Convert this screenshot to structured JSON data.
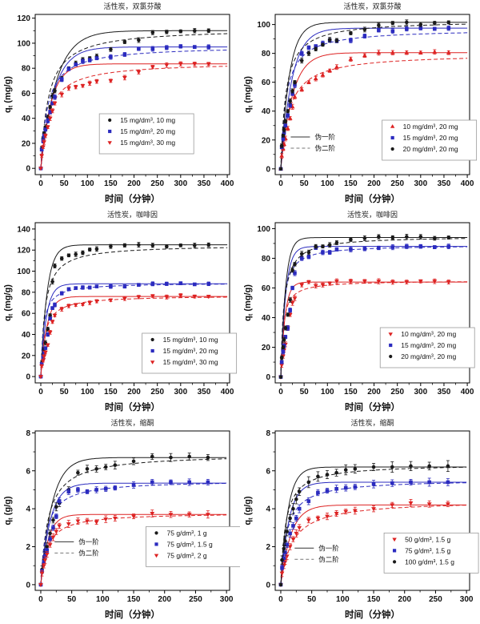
{
  "figure": {
    "xlabel": "时间（分钟）",
    "pfo_label": "伪一阶",
    "pso_label": "伪二阶",
    "colors": {
      "black": "#1a1a1a",
      "blue": "#2b2bbf",
      "red": "#dd2222"
    }
  },
  "chart_data": [
    {
      "id": "diclofenac-mass-series",
      "type": "scatter",
      "title": "活性炭，双氯芬酸",
      "xlabel": "时间（分钟）",
      "ylabel_base": "q",
      "ylabel_sub": "t",
      "ylabel_unit": " (mg/g)",
      "xlim": [
        -12,
        405
      ],
      "xticks": [
        0,
        50,
        100,
        150,
        200,
        250,
        300,
        350,
        400
      ],
      "ylim": [
        -5,
        123
      ],
      "yticks": [
        0,
        20,
        40,
        60,
        80,
        100,
        120
      ],
      "legend_position": {
        "fx": 0.33,
        "fy": 0.62
      },
      "line_legend_position": null,
      "t": [
        0,
        2,
        5,
        7,
        10,
        15,
        20,
        25,
        30,
        45,
        60,
        75,
        90,
        105,
        120,
        150,
        180,
        210,
        240,
        270,
        300,
        330,
        360
      ],
      "series": [
        {
          "label": "15 mg/dm³, 10 mg",
          "color": "#1a1a1a",
          "marker": "circle",
          "err": 2.0,
          "q": [
            0,
            16,
            24,
            28,
            33,
            41,
            49,
            58,
            62,
            72,
            80,
            84,
            87,
            88,
            89.5,
            95,
            101,
            102.5,
            108.5,
            109,
            109.5,
            110,
            110
          ],
          "pfo": {
            "qe": 110,
            "k": 0.03
          },
          "pso": {
            "qe": 112,
            "k": 0.00055
          }
        },
        {
          "label": "15 mg/dm³, 20 mg",
          "color": "#2b2bbf",
          "marker": "square",
          "err": 2.0,
          "q": [
            0,
            15,
            22,
            26,
            31,
            38,
            45,
            52,
            57,
            71,
            79.5,
            83,
            85.5,
            86.5,
            88,
            89,
            91,
            95.5,
            95.5,
            96.5,
            97.5,
            97,
            97
          ],
          "pfo": {
            "qe": 97,
            "k": 0.035
          },
          "pso": {
            "qe": 98,
            "k": 0.0007
          }
        },
        {
          "label": "15 mg/dm³, 30 mg",
          "color": "#dd2222",
          "marker": "triangle-down",
          "err": 2.0,
          "q": [
            0,
            10,
            17,
            21,
            26,
            33,
            40,
            46,
            52,
            59,
            64,
            65,
            66,
            68,
            69.5,
            70,
            72.5,
            77,
            81,
            82.5,
            83.5,
            83.5,
            83.5
          ],
          "pfo": {
            "qe": 83.5,
            "k": 0.045
          },
          "pso": {
            "qe": 85,
            "k": 0.0007
          }
        }
      ]
    },
    {
      "id": "diclofenac-concentration-series",
      "type": "scatter",
      "title": "活性炭，双氯芬酸",
      "xlabel": "时间（分钟）",
      "ylabel_base": "q",
      "ylabel_sub": "t",
      "ylabel_unit": " (mg/g)",
      "xlim": [
        -12,
        405
      ],
      "xticks": [
        0,
        50,
        100,
        150,
        200,
        250,
        300,
        350,
        400
      ],
      "ylim": [
        -4,
        107
      ],
      "yticks": [
        0,
        20,
        40,
        60,
        80,
        100
      ],
      "legend_position": {
        "fx": 0.55,
        "fy": 0.66
      },
      "line_legend_position": {
        "fx": 0.08,
        "fy": 0.73
      },
      "t": [
        0,
        2,
        5,
        7,
        10,
        15,
        20,
        25,
        30,
        45,
        60,
        75,
        90,
        105,
        120,
        150,
        180,
        210,
        240,
        270,
        300,
        330,
        360
      ],
      "series": [
        {
          "label": "10 mg/dm³, 20 mg",
          "color": "#dd2222",
          "marker": "triangle-up",
          "err": 1.8,
          "q": [
            0,
            9,
            14,
            17,
            21,
            28,
            35,
            43,
            50,
            55,
            60,
            62.5,
            65,
            68,
            70.5,
            76,
            78.5,
            80.5,
            80.5,
            80.5,
            80.5,
            81,
            80.5
          ],
          "pfo": {
            "qe": 80.5,
            "k": 0.04
          },
          "pso": {
            "qe": 80,
            "k": 0.0007
          }
        },
        {
          "label": "15 mg/dm³, 20 mg",
          "color": "#2b2bbf",
          "marker": "square",
          "err": 1.8,
          "q": [
            0,
            15,
            21,
            25,
            30,
            37,
            44,
            52,
            58,
            80,
            84,
            85,
            87,
            89,
            88.5,
            89,
            92,
            96,
            95.5,
            97,
            97.5,
            97,
            97.5
          ],
          "pfo": {
            "qe": 97.5,
            "k": 0.042
          },
          "pso": {
            "qe": 97,
            "k": 0.0009
          }
        },
        {
          "label": "20 mg/dm³, 20 mg",
          "color": "#1a1a1a",
          "marker": "circle",
          "err": 1.8,
          "q": [
            0,
            16,
            23,
            27,
            33,
            40,
            47,
            54,
            60,
            75,
            80,
            83,
            86,
            89.5,
            89,
            94,
            96.5,
            99.5,
            101,
            101.5,
            100,
            101,
            101.5
          ],
          "pfo": {
            "qe": 101.5,
            "k": 0.055
          },
          "pso": {
            "qe": 103,
            "k": 0.0009
          }
        }
      ]
    },
    {
      "id": "caffeine-mass-series",
      "type": "scatter",
      "title": "活性炭，咖啡因",
      "xlabel": "时间（分钟）",
      "ylabel_base": "q",
      "ylabel_sub": "t",
      "ylabel_unit": " (mg/g)",
      "xlim": [
        -12,
        405
      ],
      "xticks": [
        0,
        50,
        100,
        150,
        200,
        250,
        300,
        350,
        400
      ],
      "ylim": [
        -6,
        146
      ],
      "yticks": [
        0,
        20,
        40,
        60,
        80,
        100,
        120,
        140
      ],
      "legend_position": {
        "fx": 0.55,
        "fy": 0.69
      },
      "line_legend_position": null,
      "t": [
        0,
        2,
        5,
        7,
        10,
        15,
        20,
        25,
        30,
        45,
        60,
        75,
        90,
        105,
        120,
        150,
        180,
        210,
        240,
        270,
        300,
        330,
        360
      ],
      "series": [
        {
          "label": "15 mg/dm³, 10 mg",
          "color": "#1a1a1a",
          "marker": "circle",
          "err": 2.4,
          "q": [
            0,
            13,
            21,
            26,
            32,
            45,
            58,
            90,
            105,
            112,
            115,
            116,
            117.5,
            120.5,
            121,
            123.5,
            124.5,
            125,
            124.5,
            123.5,
            124.5,
            124.5,
            125
          ],
          "pfo": {
            "qe": 125,
            "k": 0.075
          },
          "pso": {
            "qe": 125,
            "k": 0.0009
          }
        },
        {
          "label": "15 mg/dm³, 20 mg",
          "color": "#2b2bbf",
          "marker": "square",
          "err": 2.0,
          "q": [
            0,
            12,
            18,
            22,
            27,
            40,
            55,
            65,
            68,
            79,
            83,
            84,
            84.5,
            84.5,
            85.5,
            85.5,
            85.5,
            87,
            88,
            88,
            88.5,
            87.5,
            88
          ],
          "pfo": {
            "qe": 88,
            "k": 0.085
          },
          "pso": {
            "qe": 89,
            "k": 0.002
          }
        },
        {
          "label": "15 mg/dm³, 30 mg",
          "color": "#dd2222",
          "marker": "triangle-down",
          "err": 2.0,
          "q": [
            0,
            10,
            15,
            19,
            23,
            30,
            42,
            52,
            58,
            64,
            67,
            68,
            68.5,
            70,
            71.5,
            72.5,
            74,
            75.5,
            76.5,
            75.5,
            77,
            76,
            76
          ],
          "pfo": {
            "qe": 76,
            "k": 0.075
          },
          "pso": {
            "qe": 77,
            "k": 0.0015
          }
        }
      ]
    },
    {
      "id": "caffeine-concentration-series",
      "type": "scatter",
      "title": "活性炭，咖啡因",
      "xlabel": "时间（分钟）",
      "ylabel_base": "q",
      "ylabel_sub": "t",
      "ylabel_unit": " (mg/g)",
      "xlim": [
        -12,
        405
      ],
      "xticks": [
        0,
        50,
        100,
        150,
        200,
        250,
        300,
        350,
        400
      ],
      "ylim": [
        -4,
        104
      ],
      "yticks": [
        0,
        20,
        40,
        60,
        80,
        100
      ],
      "legend_position": {
        "fx": 0.54,
        "fy": 0.655
      },
      "line_legend_position": null,
      "t": [
        0,
        2,
        5,
        7,
        10,
        15,
        20,
        25,
        30,
        45,
        60,
        75,
        90,
        105,
        120,
        150,
        180,
        210,
        240,
        270,
        300,
        330,
        360
      ],
      "series": [
        {
          "label": "10 mg/dm³, 20 mg",
          "color": "#dd2222",
          "marker": "triangle-down",
          "err": 1.8,
          "q": [
            0,
            8,
            14,
            18,
            22,
            33,
            42,
            50,
            53,
            62,
            64,
            61.5,
            62,
            63,
            64.5,
            64.5,
            64.5,
            64.5,
            64,
            64,
            64.5,
            64.5,
            64
          ],
          "pfo": {
            "qe": 64,
            "k": 0.11
          },
          "pso": {
            "qe": 65,
            "k": 0.003
          }
        },
        {
          "label": "15 mg/dm³, 20 mg",
          "color": "#2b2bbf",
          "marker": "square",
          "err": 1.8,
          "q": [
            0,
            10,
            17,
            21,
            27,
            33,
            45,
            60,
            70,
            80,
            81,
            87,
            84,
            84,
            86,
            86,
            86.5,
            87,
            87.5,
            88,
            88,
            87.5,
            88
          ],
          "pfo": {
            "qe": 88,
            "k": 0.095
          },
          "pso": {
            "qe": 89,
            "k": 0.002
          }
        },
        {
          "label": "20 mg/dm³, 20 mg",
          "color": "#1a1a1a",
          "marker": "circle",
          "err": 1.8,
          "q": [
            0,
            13,
            20,
            25,
            33,
            42,
            52,
            72,
            76,
            83,
            84,
            88,
            88,
            89,
            90.5,
            92.5,
            93.5,
            94.5,
            94,
            94.5,
            94.5,
            93.5,
            94
          ],
          "pfo": {
            "qe": 94,
            "k": 0.1
          },
          "pso": {
            "qe": 95,
            "k": 0.0015
          }
        }
      ]
    },
    {
      "id": "ketal-mass-series",
      "type": "scatter",
      "title": "活性炭，缩酮",
      "xlabel": "时间（分钟）",
      "ylabel_base": "q",
      "ylabel_sub": "t",
      "ylabel_unit": " (g/g)",
      "xlim": [
        -9,
        305
      ],
      "xticks": [
        0,
        50,
        100,
        150,
        200,
        250,
        300
      ],
      "ylim": [
        -0.3,
        8.1
      ],
      "yticks": [
        0,
        2,
        4,
        6,
        8
      ],
      "legend_position": {
        "fx": 0.57,
        "fy": 0.6
      },
      "line_legend_position": {
        "fx": 0.1,
        "fy": 0.66
      },
      "t": [
        0,
        2,
        5,
        7,
        10,
        15,
        20,
        25,
        30,
        45,
        60,
        75,
        90,
        105,
        120,
        150,
        180,
        210,
        240,
        270
      ],
      "series": [
        {
          "label": "75 g/dm³, 1 g",
          "color": "#1a1a1a",
          "marker": "circle",
          "err": 0.22,
          "q": [
            0,
            0.8,
            1.3,
            1.6,
            2.0,
            2.7,
            3.4,
            4.1,
            4.3,
            5.0,
            5.9,
            6.1,
            6.1,
            6.2,
            6.3,
            6.5,
            6.75,
            6.7,
            6.75,
            6.7
          ],
          "pfo": {
            "qe": 6.7,
            "k": 0.055
          },
          "pso": {
            "qe": 6.9,
            "k": 0.012
          }
        },
        {
          "label": "75 g/dm³, 1.5 g",
          "color": "#2b2bbf",
          "marker": "square",
          "err": 0.18,
          "q": [
            0,
            0.7,
            1.2,
            1.5,
            1.8,
            2.4,
            3.0,
            3.6,
            4.4,
            4.9,
            5.0,
            4.9,
            5.0,
            5.05,
            5.1,
            5.25,
            5.4,
            5.4,
            5.4,
            5.4
          ],
          "pfo": {
            "qe": 5.35,
            "k": 0.065
          },
          "pso": {
            "qe": 5.5,
            "k": 0.02
          }
        },
        {
          "label": "75 g/dm³, 2 g",
          "color": "#dd2222",
          "marker": "triangle-down",
          "err": 0.2,
          "q": [
            0,
            0.6,
            1.0,
            1.3,
            1.6,
            2.1,
            2.5,
            2.8,
            3.1,
            3.2,
            3.35,
            3.35,
            3.3,
            3.45,
            3.5,
            3.6,
            3.75,
            3.7,
            3.7,
            3.7
          ],
          "pfo": {
            "qe": 3.7,
            "k": 0.085
          },
          "pso": {
            "qe": 3.8,
            "k": 0.025
          }
        }
      ]
    },
    {
      "id": "ketal-concentration-series",
      "type": "scatter",
      "title": "活性炭，缩酮",
      "xlabel": "时间（分钟）",
      "ylabel_base": "q",
      "ylabel_sub": "t",
      "ylabel_unit": " (g/g)",
      "xlim": [
        -9,
        305
      ],
      "xticks": [
        0,
        50,
        100,
        150,
        200,
        250,
        300
      ],
      "ylim": [
        -0.3,
        8.1
      ],
      "yticks": [
        0,
        2,
        4,
        6,
        8
      ],
      "legend_position": {
        "fx": 0.56,
        "fy": 0.64
      },
      "line_legend_position": {
        "fx": 0.1,
        "fy": 0.7
      },
      "t": [
        0,
        2,
        5,
        7,
        10,
        15,
        20,
        25,
        30,
        45,
        60,
        75,
        90,
        105,
        120,
        150,
        180,
        210,
        240,
        270
      ],
      "series": [
        {
          "label": "50 g/dm³, 1.5 g",
          "color": "#dd2222",
          "marker": "triangle-down",
          "err": 0.2,
          "q": [
            0,
            0.6,
            1.0,
            1.2,
            1.5,
            2.0,
            2.4,
            2.7,
            3.0,
            3.4,
            3.5,
            3.6,
            3.75,
            3.85,
            3.9,
            4.0,
            4.2,
            4.3,
            4.25,
            4.25
          ],
          "pfo": {
            "qe": 4.2,
            "k": 0.06
          },
          "pso": {
            "qe": 4.45,
            "k": 0.012
          }
        },
        {
          "label": "75 g/dm³, 1.5 g",
          "color": "#2b2bbf",
          "marker": "square",
          "err": 0.22,
          "q": [
            0,
            0.9,
            1.4,
            1.7,
            2.1,
            2.7,
            3.1,
            3.5,
            4.0,
            4.4,
            4.85,
            4.95,
            5.05,
            5.1,
            5.15,
            5.3,
            5.35,
            5.4,
            5.4,
            5.4
          ],
          "pfo": {
            "qe": 5.4,
            "k": 0.075
          },
          "pso": {
            "qe": 5.55,
            "k": 0.018
          }
        },
        {
          "label": "100 g/dm³, 1.5 g",
          "color": "#1a1a1a",
          "marker": "circle",
          "err": 0.3,
          "q": [
            0,
            1.3,
            1.9,
            2.3,
            2.8,
            3.5,
            4.0,
            4.5,
            4.9,
            5.4,
            5.7,
            5.8,
            5.9,
            6.05,
            6.1,
            6.2,
            6.2,
            6.25,
            6.25,
            6.25
          ],
          "pfo": {
            "qe": 6.2,
            "k": 0.085
          },
          "pso": {
            "qe": 6.35,
            "k": 0.02
          }
        }
      ]
    }
  ]
}
